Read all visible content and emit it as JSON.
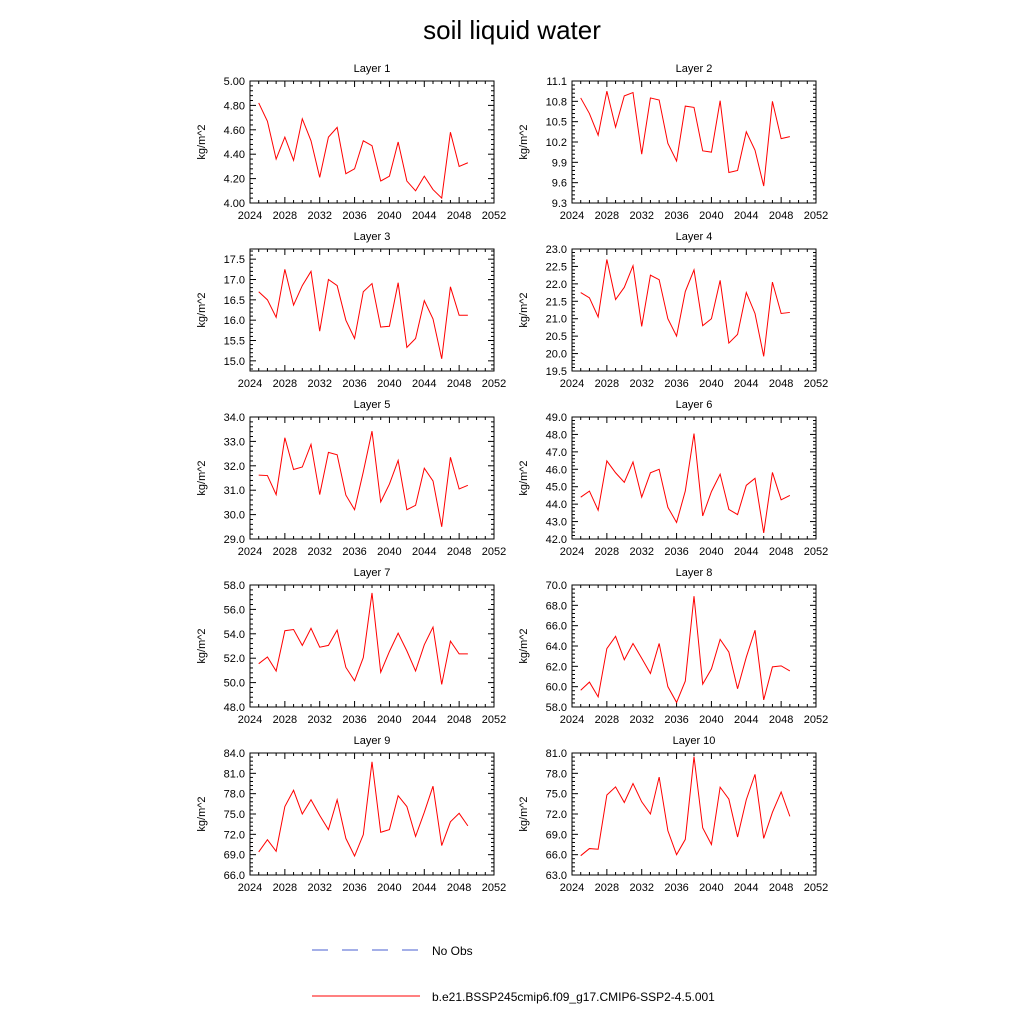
{
  "figure_title": "soil liquid water",
  "legend": [
    {
      "label": "No Obs",
      "style": "dashed",
      "color": "#4a5fd0"
    },
    {
      "label": "b.e21.BSSP245cmip6.f09_g17.CMIP6-SSP2-4.5.001",
      "style": "solid",
      "color": "#ff0000"
    }
  ],
  "chart_data": [
    {
      "type": "line",
      "title": "Layer 1",
      "ylabel": "kg/m^2",
      "xlim": [
        2024,
        2052
      ],
      "xticks": [
        "2024",
        "2028",
        "2032",
        "2036",
        "2040",
        "2044",
        "2048",
        "2052"
      ],
      "ylim": [
        4.0,
        5.0
      ],
      "yticks": [
        "4.00",
        "4.20",
        "4.40",
        "4.60",
        "4.80",
        "5.00"
      ],
      "x": [
        2025,
        2026,
        2027,
        2028,
        2029,
        2030,
        2031,
        2032,
        2033,
        2034,
        2035,
        2036,
        2037,
        2038,
        2039,
        2040,
        2041,
        2042,
        2043,
        2044,
        2045,
        2046,
        2047,
        2048,
        2049
      ],
      "series": [
        {
          "name": "b.e21.BSSP245cmip6.f09_g17.CMIP6-SSP2-4.5.001",
          "values": [
            4.82,
            4.67,
            4.36,
            4.54,
            4.35,
            4.69,
            4.51,
            4.21,
            4.54,
            4.62,
            4.24,
            4.28,
            4.51,
            4.47,
            4.18,
            4.22,
            4.5,
            4.18,
            4.1,
            4.22,
            4.11,
            4.04,
            4.58,
            4.3,
            4.33
          ]
        }
      ]
    },
    {
      "type": "line",
      "title": "Layer 2",
      "ylabel": "kg/m^2",
      "xlim": [
        2024,
        2052
      ],
      "xticks": [
        "2024",
        "2028",
        "2032",
        "2036",
        "2040",
        "2044",
        "2048",
        "2052"
      ],
      "ylim": [
        9.3,
        11.1
      ],
      "yticks": [
        "9.3",
        "9.6",
        "9.9",
        "10.2",
        "10.5",
        "10.8",
        "11.1"
      ],
      "x": [
        2025,
        2026,
        2027,
        2028,
        2029,
        2030,
        2031,
        2032,
        2033,
        2034,
        2035,
        2036,
        2037,
        2038,
        2039,
        2040,
        2041,
        2042,
        2043,
        2044,
        2045,
        2046,
        2047,
        2048,
        2049
      ],
      "series": [
        {
          "name": "b.e21.BSSP245cmip6.f09_g17.CMIP6-SSP2-4.5.001",
          "values": [
            10.85,
            10.62,
            10.3,
            10.95,
            10.42,
            10.88,
            10.93,
            10.02,
            10.85,
            10.82,
            10.18,
            9.92,
            10.73,
            10.71,
            10.07,
            10.05,
            10.81,
            9.75,
            9.78,
            10.35,
            10.08,
            9.55,
            10.8,
            10.25,
            10.28
          ]
        }
      ]
    },
    {
      "type": "line",
      "title": "Layer 3",
      "ylabel": "kg/m^2",
      "xlim": [
        2024,
        2052
      ],
      "xticks": [
        "2024",
        "2028",
        "2032",
        "2036",
        "2040",
        "2044",
        "2048",
        "2052"
      ],
      "ylim": [
        14.75,
        17.75
      ],
      "yticks": [
        "15.0",
        "15.5",
        "16.0",
        "16.5",
        "17.0",
        "17.5"
      ],
      "x": [
        2025,
        2026,
        2027,
        2028,
        2029,
        2030,
        2031,
        2032,
        2033,
        2034,
        2035,
        2036,
        2037,
        2038,
        2039,
        2040,
        2041,
        2042,
        2043,
        2044,
        2045,
        2046,
        2047,
        2048,
        2049
      ],
      "series": [
        {
          "name": "b.e21.BSSP245cmip6.f09_g17.CMIP6-SSP2-4.5.001",
          "values": [
            16.7,
            16.5,
            16.07,
            17.25,
            16.37,
            16.85,
            17.2,
            15.73,
            17.0,
            16.85,
            16.0,
            15.55,
            16.7,
            16.9,
            15.83,
            15.85,
            16.92,
            15.33,
            15.55,
            16.48,
            16.03,
            15.05,
            16.82,
            16.12,
            16.12
          ]
        }
      ]
    },
    {
      "type": "line",
      "title": "Layer 4",
      "ylabel": "kg/m^2",
      "xlim": [
        2024,
        2052
      ],
      "xticks": [
        "2024",
        "2028",
        "2032",
        "2036",
        "2040",
        "2044",
        "2048",
        "2052"
      ],
      "ylim": [
        19.5,
        23.0
      ],
      "yticks": [
        "19.5",
        "20.0",
        "20.5",
        "21.0",
        "21.5",
        "22.0",
        "22.5",
        "23.0"
      ],
      "x": [
        2025,
        2026,
        2027,
        2028,
        2029,
        2030,
        2031,
        2032,
        2033,
        2034,
        2035,
        2036,
        2037,
        2038,
        2039,
        2040,
        2041,
        2042,
        2043,
        2044,
        2045,
        2046,
        2047,
        2048,
        2049
      ],
      "series": [
        {
          "name": "b.e21.BSSP245cmip6.f09_g17.CMIP6-SSP2-4.5.001",
          "values": [
            21.75,
            21.6,
            21.05,
            22.7,
            21.55,
            21.9,
            22.52,
            20.78,
            22.25,
            22.12,
            21.0,
            20.5,
            21.78,
            22.4,
            20.8,
            21.0,
            22.1,
            20.3,
            20.55,
            21.75,
            21.15,
            19.92,
            22.05,
            21.15,
            21.18
          ]
        }
      ]
    },
    {
      "type": "line",
      "title": "Layer 5",
      "ylabel": "kg/m^2",
      "xlim": [
        2024,
        2052
      ],
      "xticks": [
        "2024",
        "2028",
        "2032",
        "2036",
        "2040",
        "2044",
        "2048",
        "2052"
      ],
      "ylim": [
        29.0,
        34.0
      ],
      "yticks": [
        "29.0",
        "30.0",
        "31.0",
        "32.0",
        "33.0",
        "34.0"
      ],
      "x": [
        2025,
        2026,
        2027,
        2028,
        2029,
        2030,
        2031,
        2032,
        2033,
        2034,
        2035,
        2036,
        2037,
        2038,
        2039,
        2040,
        2041,
        2042,
        2043,
        2044,
        2045,
        2046,
        2047,
        2048,
        2049
      ],
      "series": [
        {
          "name": "b.e21.BSSP245cmip6.f09_g17.CMIP6-SSP2-4.5.001",
          "values": [
            31.62,
            31.6,
            30.82,
            33.15,
            31.85,
            31.95,
            32.88,
            30.82,
            32.55,
            32.45,
            30.8,
            30.2,
            31.75,
            33.42,
            30.52,
            31.25,
            32.22,
            30.2,
            30.38,
            31.9,
            31.38,
            29.5,
            32.35,
            31.05,
            31.2
          ]
        }
      ]
    },
    {
      "type": "line",
      "title": "Layer 6",
      "ylabel": "kg/m^2",
      "xlim": [
        2024,
        2052
      ],
      "xticks": [
        "2024",
        "2028",
        "2032",
        "2036",
        "2040",
        "2044",
        "2048",
        "2052"
      ],
      "ylim": [
        42.0,
        49.0
      ],
      "yticks": [
        "42.0",
        "43.0",
        "44.0",
        "45.0",
        "46.0",
        "47.0",
        "48.0",
        "49.0"
      ],
      "x": [
        2025,
        2026,
        2027,
        2028,
        2029,
        2030,
        2031,
        2032,
        2033,
        2034,
        2035,
        2036,
        2037,
        2038,
        2039,
        2040,
        2041,
        2042,
        2043,
        2044,
        2045,
        2046,
        2047,
        2048,
        2049
      ],
      "series": [
        {
          "name": "b.e21.BSSP245cmip6.f09_g17.CMIP6-SSP2-4.5.001",
          "values": [
            44.4,
            44.75,
            43.65,
            46.48,
            45.8,
            45.25,
            46.42,
            44.4,
            45.8,
            46.0,
            43.82,
            42.95,
            44.75,
            48.05,
            43.32,
            44.72,
            45.72,
            43.7,
            43.4,
            45.08,
            45.48,
            42.35,
            45.82,
            44.25,
            44.5
          ]
        }
      ]
    },
    {
      "type": "line",
      "title": "Layer 7",
      "ylabel": "kg/m^2",
      "xlim": [
        2024,
        2052
      ],
      "xticks": [
        "2024",
        "2028",
        "2032",
        "2036",
        "2040",
        "2044",
        "2048",
        "2052"
      ],
      "ylim": [
        48.0,
        58.0
      ],
      "yticks": [
        "48.0",
        "50.0",
        "52.0",
        "54.0",
        "56.0",
        "58.0"
      ],
      "x": [
        2025,
        2026,
        2027,
        2028,
        2029,
        2030,
        2031,
        2032,
        2033,
        2034,
        2035,
        2036,
        2037,
        2038,
        2039,
        2040,
        2041,
        2042,
        2043,
        2044,
        2045,
        2046,
        2047,
        2048,
        2049
      ],
      "series": [
        {
          "name": "b.e21.BSSP245cmip6.f09_g17.CMIP6-SSP2-4.5.001",
          "values": [
            51.55,
            52.1,
            50.95,
            54.25,
            54.35,
            53.05,
            54.45,
            52.9,
            53.05,
            54.3,
            51.25,
            50.15,
            52.05,
            57.35,
            50.85,
            52.55,
            54.05,
            52.6,
            50.95,
            53.1,
            54.55,
            49.85,
            53.4,
            52.35,
            52.35
          ]
        }
      ]
    },
    {
      "type": "line",
      "title": "Layer 8",
      "ylabel": "kg/m^2",
      "xlim": [
        2024,
        2052
      ],
      "xticks": [
        "2024",
        "2028",
        "2032",
        "2036",
        "2040",
        "2044",
        "2048",
        "2052"
      ],
      "ylim": [
        58.0,
        70.0
      ],
      "yticks": [
        "58.0",
        "60.0",
        "62.0",
        "64.0",
        "66.0",
        "68.0",
        "70.0"
      ],
      "x": [
        2025,
        2026,
        2027,
        2028,
        2029,
        2030,
        2031,
        2032,
        2033,
        2034,
        2035,
        2036,
        2037,
        2038,
        2039,
        2040,
        2041,
        2042,
        2043,
        2044,
        2045,
        2046,
        2047,
        2048,
        2049
      ],
      "series": [
        {
          "name": "b.e21.BSSP245cmip6.f09_g17.CMIP6-SSP2-4.5.001",
          "values": [
            59.65,
            60.45,
            59.0,
            63.75,
            64.95,
            62.65,
            64.25,
            62.8,
            61.3,
            64.25,
            60.0,
            58.45,
            60.55,
            68.9,
            60.25,
            61.75,
            64.65,
            63.4,
            59.8,
            62.9,
            65.55,
            58.7,
            61.95,
            62.05,
            61.55
          ]
        }
      ]
    },
    {
      "type": "line",
      "title": "Layer 9",
      "ylabel": "kg/m^2",
      "xlim": [
        2024,
        2052
      ],
      "xticks": [
        "2024",
        "2028",
        "2032",
        "2036",
        "2040",
        "2044",
        "2048",
        "2052"
      ],
      "ylim": [
        66.0,
        84.0
      ],
      "yticks": [
        "66.0",
        "69.0",
        "72.0",
        "75.0",
        "78.0",
        "81.0",
        "84.0"
      ],
      "x": [
        2025,
        2026,
        2027,
        2028,
        2029,
        2030,
        2031,
        2032,
        2033,
        2034,
        2035,
        2036,
        2037,
        2038,
        2039,
        2040,
        2041,
        2042,
        2043,
        2044,
        2045,
        2046,
        2047,
        2048,
        2049
      ],
      "series": [
        {
          "name": "b.e21.BSSP245cmip6.f09_g17.CMIP6-SSP2-4.5.001",
          "values": [
            69.4,
            71.2,
            69.5,
            76.1,
            78.5,
            75.0,
            77.1,
            74.8,
            72.7,
            77.1,
            71.4,
            68.8,
            71.95,
            82.7,
            72.3,
            72.7,
            77.7,
            76.1,
            71.7,
            75.25,
            79.1,
            70.35,
            73.85,
            75.1,
            73.25
          ]
        }
      ]
    },
    {
      "type": "line",
      "title": "Layer 10",
      "ylabel": "kg/m^2",
      "xlim": [
        2024,
        2052
      ],
      "xticks": [
        "2024",
        "2028",
        "2032",
        "2036",
        "2040",
        "2044",
        "2048",
        "2052"
      ],
      "ylim": [
        63.0,
        81.0
      ],
      "yticks": [
        "63.0",
        "66.0",
        "69.0",
        "72.0",
        "75.0",
        "78.0",
        "81.0"
      ],
      "x": [
        2025,
        2026,
        2027,
        2028,
        2029,
        2030,
        2031,
        2032,
        2033,
        2034,
        2035,
        2036,
        2037,
        2038,
        2039,
        2040,
        2041,
        2042,
        2043,
        2044,
        2045,
        2046,
        2047,
        2048,
        2049
      ],
      "series": [
        {
          "name": "b.e21.BSSP245cmip6.f09_g17.CMIP6-SSP2-4.5.001",
          "values": [
            65.85,
            66.9,
            66.8,
            74.8,
            76.0,
            73.7,
            76.5,
            73.8,
            72.0,
            77.45,
            69.55,
            66.0,
            68.25,
            80.45,
            69.95,
            67.5,
            75.95,
            74.2,
            68.6,
            74.1,
            77.85,
            68.4,
            72.25,
            75.25,
            71.65
          ]
        }
      ]
    }
  ]
}
